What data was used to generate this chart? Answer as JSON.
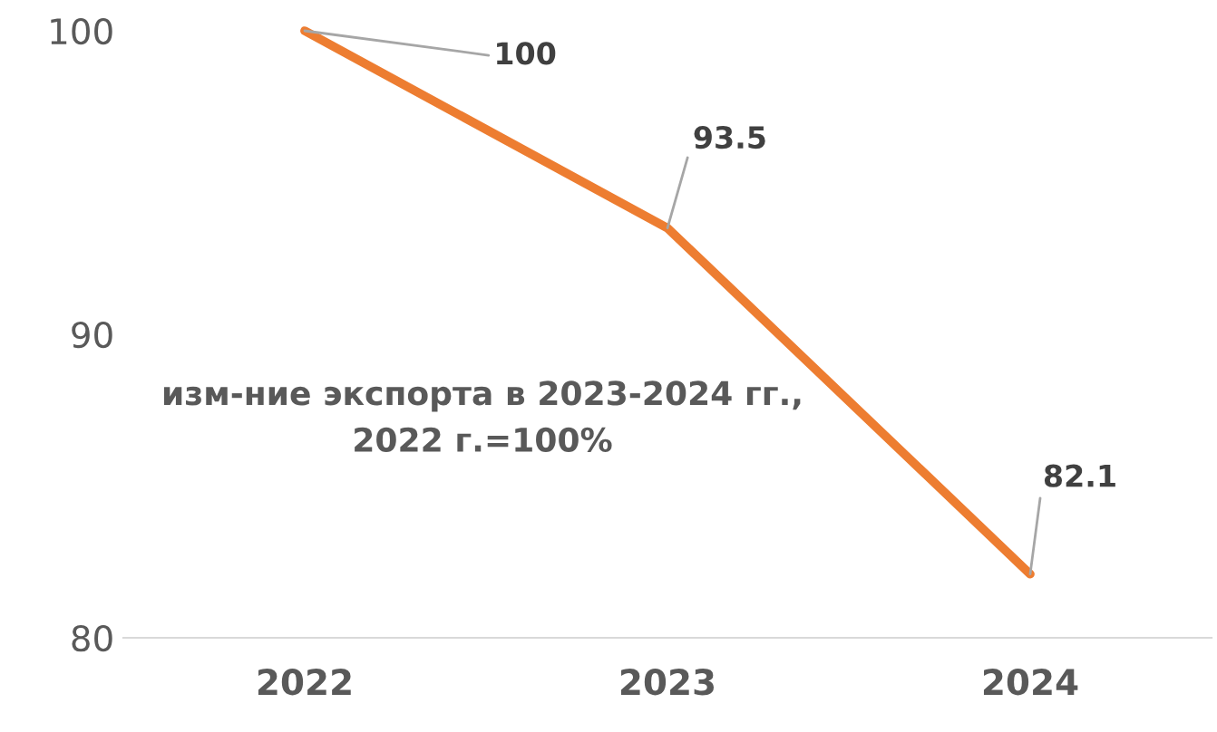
{
  "chart_data": {
    "type": "line",
    "title": "изм-ние экспорта в 2023-2024 гг.,\n2022 г.=100%",
    "categories": [
      "2022",
      "2023",
      "2024"
    ],
    "series": [
      {
        "color": "#ed7d31",
        "values": [
          100,
          93.5,
          82.1
        ]
      }
    ],
    "annotations": [
      {
        "text": "100",
        "x": "2022",
        "y": 100
      },
      {
        "text": "93.5",
        "x": "2023",
        "y": 93.5
      },
      {
        "text": "82.1",
        "x": "2024",
        "y": 82.1
      }
    ],
    "ylim": [
      80,
      100
    ],
    "yticks": [
      80,
      90,
      100
    ],
    "grid": false,
    "marker": "none",
    "line_style": "solid"
  }
}
